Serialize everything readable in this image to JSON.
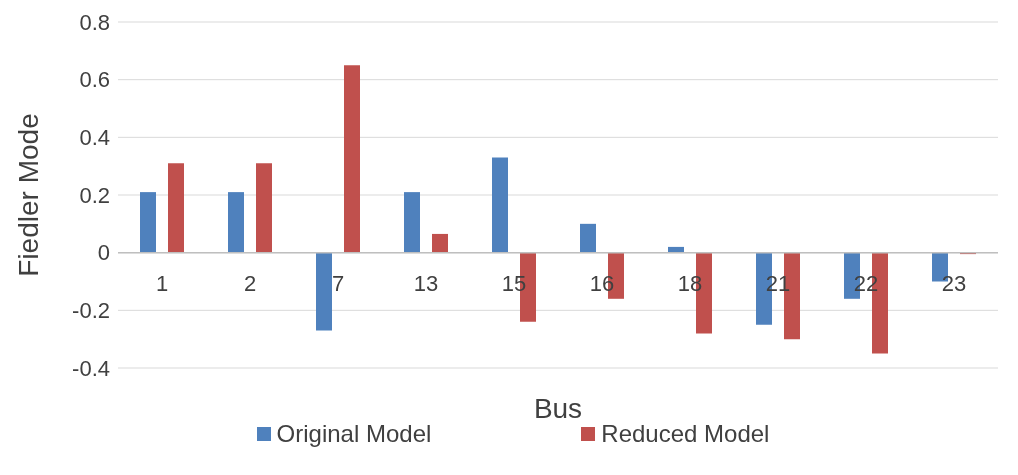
{
  "chart_data": {
    "type": "bar",
    "xlabel": "Bus",
    "ylabel": "Fiedler Mode",
    "categories": [
      "1",
      "2",
      "7",
      "13",
      "15",
      "16",
      "18",
      "21",
      "22",
      "23"
    ],
    "series": [
      {
        "name": "Original Model",
        "color": "#4f81bd",
        "values": [
          0.21,
          0.21,
          -0.27,
          0.21,
          0.33,
          0.1,
          0.02,
          -0.25,
          -0.16,
          -0.1
        ]
      },
      {
        "name": "Reduced Model",
        "color": "#c0504d",
        "values": [
          0.31,
          0.31,
          0.65,
          0.065,
          -0.24,
          -0.16,
          -0.28,
          -0.3,
          -0.35,
          -0.005
        ]
      }
    ],
    "ylim": [
      -0.4,
      0.8
    ],
    "yticks": [
      {
        "value": -0.4,
        "label": "-0.4"
      },
      {
        "value": -0.2,
        "label": "-0.2"
      },
      {
        "value": 0,
        "label": "0"
      },
      {
        "value": 0.2,
        "label": "0.2"
      },
      {
        "value": 0.4,
        "label": "0.4"
      },
      {
        "value": 0.6,
        "label": "0.6"
      },
      {
        "value": 0.8,
        "label": "0.8"
      }
    ],
    "grid": "y",
    "legend": "bottom"
  }
}
